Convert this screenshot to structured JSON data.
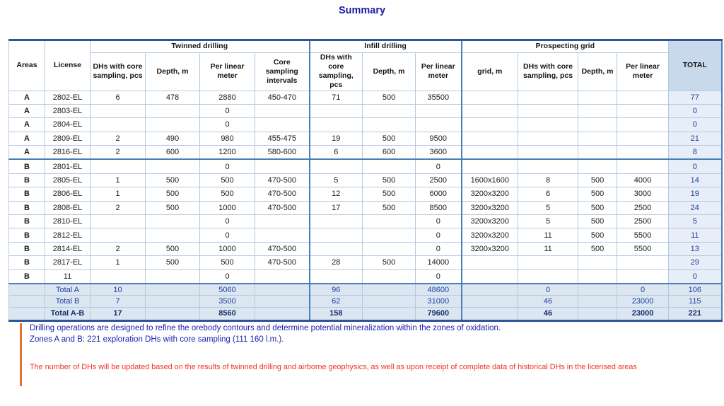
{
  "title": "Summary",
  "table": {
    "row_header_cols": [
      "Areas",
      "License"
    ],
    "col_groups": [
      {
        "label": "Twinned drilling"
      },
      {
        "label": "Infill drilling"
      },
      {
        "label": "Prospecting grid"
      }
    ],
    "sub_headers": [
      "DHs with core sampling, pcs",
      "Depth, m",
      "Per linear meter",
      "Core sampling intervals",
      "DHs with core sampling, pcs",
      "Depth, m",
      "Per linear meter",
      "grid, m",
      "DHs with core sampling, pcs",
      "Depth, m",
      "Per linear meter"
    ],
    "total_header": "TOTAL",
    "rows": [
      {
        "area": "A",
        "license": "2802-EL",
        "cells": [
          "6",
          "478",
          "2880",
          "450-470",
          "71",
          "500",
          "35500",
          "",
          "",
          "",
          ""
        ],
        "total": "77"
      },
      {
        "area": "A",
        "license": "2803-EL",
        "cells": [
          "",
          "",
          "0",
          "",
          "",
          "",
          "",
          "",
          "",
          "",
          ""
        ],
        "total": "0"
      },
      {
        "area": "A",
        "license": "2804-EL",
        "cells": [
          "",
          "",
          "0",
          "",
          "",
          "",
          "",
          "",
          "",
          "",
          ""
        ],
        "total": "0"
      },
      {
        "area": "A",
        "license": "2809-EL",
        "cells": [
          "2",
          "490",
          "980",
          "455-475",
          "19",
          "500",
          "9500",
          "",
          "",
          "",
          ""
        ],
        "total": "21"
      },
      {
        "area": "A",
        "license": "2816-EL",
        "cells": [
          "2",
          "600",
          "1200",
          "580-600",
          "6",
          "600",
          "3600",
          "",
          "",
          "",
          ""
        ],
        "total": "8"
      },
      {
        "area": "B",
        "license": "2801-EL",
        "cells": [
          "",
          "",
          "0",
          "",
          "",
          "",
          "0",
          "",
          "",
          "",
          ""
        ],
        "total": "0"
      },
      {
        "area": "B",
        "license": "2805-EL",
        "cells": [
          "1",
          "500",
          "500",
          "470-500",
          "5",
          "500",
          "2500",
          "1600x1600",
          "8",
          "500",
          "4000"
        ],
        "total": "14"
      },
      {
        "area": "B",
        "license": "2806-EL",
        "cells": [
          "1",
          "500",
          "500",
          "470-500",
          "12",
          "500",
          "6000",
          "3200x3200",
          "6",
          "500",
          "3000"
        ],
        "total": "19"
      },
      {
        "area": "B",
        "license": "2808-EL",
        "cells": [
          "2",
          "500",
          "1000",
          "470-500",
          "17",
          "500",
          "8500",
          "3200x3200",
          "5",
          "500",
          "2500"
        ],
        "total": "24"
      },
      {
        "area": "B",
        "license": "2810-EL",
        "cells": [
          "",
          "",
          "0",
          "",
          "",
          "",
          "0",
          "3200x3200",
          "5",
          "500",
          "2500"
        ],
        "total": "5"
      },
      {
        "area": "B",
        "license": "2812-EL",
        "cells": [
          "",
          "",
          "0",
          "",
          "",
          "",
          "0",
          "3200x3200",
          "11",
          "500",
          "5500"
        ],
        "total": "11"
      },
      {
        "area": "B",
        "license": "2814-EL",
        "cells": [
          "2",
          "500",
          "1000",
          "470-500",
          "",
          "",
          "0",
          "3200x3200",
          "11",
          "500",
          "5500"
        ],
        "total": "13"
      },
      {
        "area": "B",
        "license": "2817-EL",
        "cells": [
          "1",
          "500",
          "500",
          "470-500",
          "28",
          "500",
          "14000",
          "",
          "",
          "",
          ""
        ],
        "total": "29"
      },
      {
        "area": "B",
        "license": "11",
        "cells": [
          "",
          "",
          "0",
          "",
          "",
          "",
          "0",
          "",
          "",
          "",
          ""
        ],
        "total": "0"
      }
    ],
    "total_rows": [
      {
        "label": "Total A",
        "cells": [
          "10",
          "",
          "5060",
          "",
          "96",
          "",
          "48600",
          "",
          "0",
          "",
          "0"
        ],
        "total": "106",
        "grand": false
      },
      {
        "label": "Total B",
        "cells": [
          "7",
          "",
          "3500",
          "",
          "62",
          "",
          "31000",
          "",
          "46",
          "",
          "23000"
        ],
        "total": "115",
        "grand": false
      },
      {
        "label": "Total A-B",
        "cells": [
          "17",
          "",
          "8560",
          "",
          "158",
          "",
          "79600",
          "",
          "46",
          "",
          "23000"
        ],
        "total": "221",
        "grand": true
      }
    ]
  },
  "notes": {
    "blue_line1": "Drilling operations are designed to refine the orebody contours and determine potential mineralization within the zones of oxidation.",
    "blue_line2": "Zones A and B: 221 exploration DHs with core sampling (111 160 l.m.).",
    "red": "The number of DHs will be updated based on the results of twinned drilling and airborne geophysics, as well as upon receipt of complete data of historical DHs in the licensed areas"
  },
  "colors": {
    "title_blue": "#1b1ba8",
    "border_dark_blue": "#2f5597",
    "border_medium_blue": "#4a7ebb",
    "border_light_blue": "#b2c9e2",
    "total_header_fill": "#c9d9ec",
    "total_column_fill": "#e7eef7",
    "total_row_fill": "#dce6f1",
    "total_value_blue": "#1e3fa0",
    "note_blue": "#1b1bb0",
    "note_red": "#ef3124",
    "accent_bar_orange": "#e0712e"
  }
}
